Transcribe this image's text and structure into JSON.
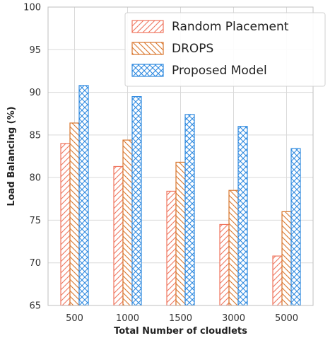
{
  "chart_data": {
    "type": "bar",
    "categories": [
      "500",
      "1000",
      "1500",
      "3000",
      "5000"
    ],
    "series": [
      {
        "name": "Random Placement",
        "values": [
          84.0,
          81.3,
          78.4,
          74.5,
          70.8
        ],
        "color": "#f0765f",
        "hatch": "diagonal-forward"
      },
      {
        "name": "DROPS",
        "values": [
          86.4,
          84.4,
          81.8,
          78.5,
          76.0
        ],
        "color": "#d9762c",
        "hatch": "diagonal-back"
      },
      {
        "name": "Proposed Model",
        "values": [
          90.8,
          89.5,
          87.4,
          86.0,
          83.4
        ],
        "color": "#2f8ae0",
        "hatch": "crosshatch"
      }
    ],
    "xlabel": "Total Number of cloudlets",
    "ylabel": "Load Balancing (%)",
    "ylim": [
      65,
      100
    ],
    "yticks": [
      "65",
      "70",
      "75",
      "80",
      "85",
      "90",
      "95",
      "100"
    ],
    "grid": true,
    "legend_position": "top-right"
  }
}
